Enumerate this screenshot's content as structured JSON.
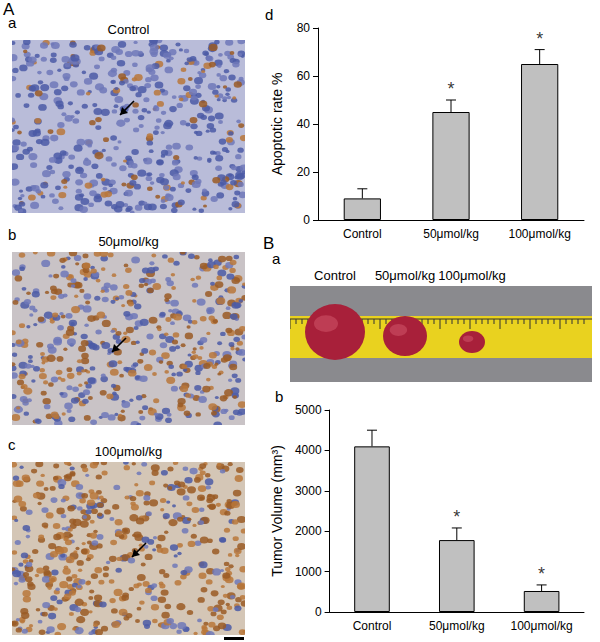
{
  "sections": [
    "A",
    "B"
  ],
  "images": [
    {
      "panel": "a",
      "title": "Control"
    },
    {
      "panel": "b",
      "title": "50μmol/kg"
    },
    {
      "panel": "c",
      "title": "100μmol/kg"
    }
  ],
  "tumor_photo": {
    "panel": "a",
    "labels": [
      "Control",
      "50μmol/kg",
      "100μmol/kg"
    ]
  },
  "chart_data": [
    {
      "panel": "d",
      "type": "bar",
      "y_label": "Apoptotic rate %",
      "categories": [
        "Control",
        "50μmol/kg",
        "100μmol/kg"
      ],
      "values": [
        9,
        45,
        65
      ],
      "errors": [
        4,
        5,
        6
      ],
      "annotations": [
        {
          "category": "50μmol/kg",
          "text": "*"
        },
        {
          "category": "100μmol/kg",
          "text": "*"
        }
      ],
      "color": "#c0c0c0",
      "ylim": [
        0,
        80
      ],
      "yticks": [
        0,
        20,
        40,
        60,
        80
      ],
      "grid": false
    },
    {
      "panel": "b",
      "type": "bar",
      "y_label": "Tumor Volume (mm³)",
      "categories": [
        "Control",
        "50μmol/kg",
        "100μmol/kg"
      ],
      "values": [
        4100,
        1780,
        520
      ],
      "errors": [
        400,
        300,
        150
      ],
      "annotations": [
        {
          "category": "50μmol/kg",
          "text": "*"
        },
        {
          "category": "100μmol/kg",
          "text": "*"
        }
      ],
      "color": "#c0c0c0",
      "ylim": [
        0,
        5000
      ],
      "yticks": [
        0,
        1000,
        2000,
        3000,
        4000,
        5000
      ],
      "grid": false
    }
  ]
}
